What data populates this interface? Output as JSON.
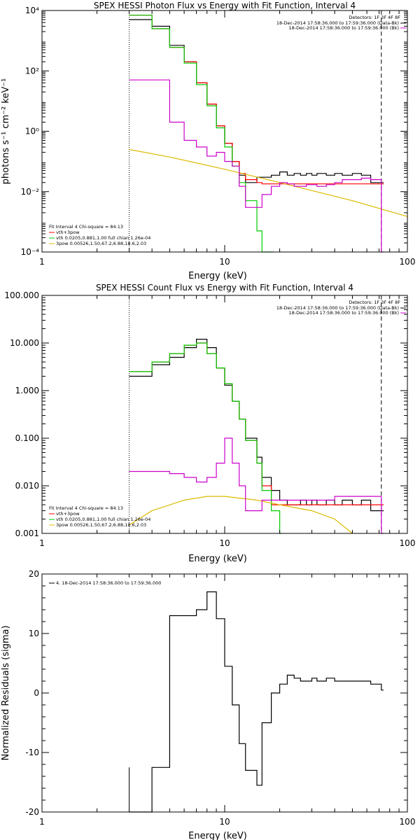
{
  "chart_data": [
    {
      "type": "line",
      "title": "SPEX HESSI Photon Flux vs Energy with Fit Function, Interval 4",
      "xlabel": "Energy (keV)",
      "ylabel": "photons s⁻¹ cm⁻² keV⁻¹",
      "xscale": "log",
      "yscale": "log",
      "xlim": [
        1,
        100
      ],
      "ylim": [
        0.0001,
        10000
      ],
      "x_ticks": [
        "1",
        "10",
        "100"
      ],
      "y_ticks": [
        "10⁻⁴",
        "10⁻²",
        "10⁰",
        "10²",
        "10⁴"
      ],
      "legend_top": {
        "header": "Detectors: 1F 3F 4F 8F",
        "entries": [
          {
            "label": "18-Dec-2014 17:58:36.000 to 17:59:36.000 (Data-Bk)",
            "color": "#000000"
          },
          {
            "label": "18-Dec-2014 17:58:36.000 to 17:59:36.000 (Bk)",
            "color": "#cc00cc"
          }
        ]
      },
      "legend_bottom": {
        "header": "Fit Interval  4    Chi-square = 84.13",
        "entries": [
          {
            "label": "vth+3pow",
            "color": "#ff0000"
          },
          {
            "label": "vth 0.0205,0.881,1.00  full chian 1.26e-04",
            "color": "#00cc00"
          },
          {
            "label": "3pow 0.00526,1.50,67.2,6.88,18.6,2.03",
            "color": "#ddbb00"
          }
        ]
      },
      "markers": {
        "dotted_x": 3,
        "dashed_x": 72
      },
      "series": [
        {
          "name": "18-Dec-2014 17:58:36.000 to 17:59:36.000 (Data-Bk)",
          "color": "#000000",
          "x": [
            3,
            4,
            5,
            6,
            7,
            8,
            9,
            10,
            11,
            12,
            13,
            15,
            16,
            18,
            20,
            22,
            24,
            26,
            28,
            30,
            32,
            36,
            40,
            44,
            50,
            56,
            63,
            72
          ],
          "y": [
            5000,
            3000,
            700,
            200,
            40,
            8,
            1.5,
            0.4,
            0.1,
            0.035,
            0.02,
            0.03,
            0.03,
            0.035,
            0.045,
            0.035,
            0.04,
            0.035,
            0.04,
            0.035,
            0.04,
            0.035,
            0.04,
            0.035,
            0.04,
            0.035,
            0.02,
            0.02
          ]
        },
        {
          "name": "vth+3pow",
          "color": "#ff0000",
          "x": [
            3,
            4,
            5,
            6,
            7,
            8,
            9,
            10,
            11,
            12,
            13,
            15,
            16,
            18,
            20,
            22,
            24,
            26,
            28,
            30,
            32,
            36,
            40,
            44,
            50,
            56,
            63,
            72
          ],
          "y": [
            7000,
            2500,
            600,
            200,
            40,
            8,
            1.5,
            0.4,
            0.1,
            0.04,
            0.025,
            0.02,
            0.018,
            0.018,
            0.018,
            0.018,
            0.018,
            0.018,
            0.018,
            0.018,
            0.018,
            0.018,
            0.018,
            0.018,
            0.018,
            0.018,
            0.018,
            0.018
          ]
        },
        {
          "name": "vth 0.0205,0.881,1.00",
          "color": "#00cc00",
          "x": [
            3,
            4,
            5,
            6,
            7,
            8,
            9,
            10,
            11,
            12,
            13,
            15,
            16,
            18
          ],
          "y": [
            7000,
            2500,
            600,
            180,
            35,
            7,
            1.3,
            0.3,
            0.07,
            0.02,
            0.005,
            0.0005,
            0.0001,
            0.0001
          ]
        },
        {
          "name": "3pow 0.00526,1.50,67.2,6.88,18.6,2.03",
          "color": "#ddbb00",
          "x": [
            3,
            5,
            10,
            20,
            50,
            100
          ],
          "y": [
            0.25,
            0.14,
            0.055,
            0.02,
            0.005,
            0.0015
          ]
        },
        {
          "name": "18-Dec-2014 17:58:36.000 to 17:59:36.000 (Bk)",
          "color": "#cc00cc",
          "x": [
            3,
            4,
            5,
            6,
            7,
            8,
            9,
            10,
            11,
            12,
            13,
            15,
            16,
            18,
            20,
            22,
            24,
            26,
            28,
            30,
            32,
            36,
            40,
            44,
            50,
            56,
            63,
            72
          ],
          "y": [
            50,
            50,
            2,
            0.5,
            0.3,
            0.15,
            0.2,
            0.1,
            0.07,
            0.015,
            0.003,
            0.003,
            0.008,
            0.015,
            0.02,
            0.018,
            0.015,
            0.015,
            0.017,
            0.017,
            0.015,
            0.017,
            0.02,
            0.025,
            0.025,
            0.028,
            0.025,
            0.0001
          ]
        }
      ]
    },
    {
      "type": "line",
      "title": "SPEX HESSI Count Flux vs Energy with Fit Function, Interval 4",
      "xlabel": "Energy (keV)",
      "ylabel": "",
      "xscale": "log",
      "yscale": "log",
      "xlim": [
        1,
        100
      ],
      "ylim": [
        0.001,
        100
      ],
      "x_ticks": [
        "1",
        "10",
        "100"
      ],
      "y_ticks": [
        "100.000",
        "10.000",
        "1.000",
        "0.100",
        "0.010",
        "0.001"
      ],
      "legend_top": {
        "header": "Detectors: 1F 3F 4F 8F",
        "entries": [
          {
            "label": "18-Dec-2014 17:58:36.000 to 17:59:36.000 (Data-Bk)",
            "color": "#000000"
          },
          {
            "label": "18-Dec-2014 17:58:36.000 to 17:59:36.000 (Bk)",
            "color": "#cc00cc"
          }
        ]
      },
      "legend_bottom": {
        "header": "Fit Interval  4    Chi-square = 84.13",
        "entries": [
          {
            "label": "vth+3pow",
            "color": "#ff0000"
          },
          {
            "label": "vth 0.0205,0.881,1.00  full chian 1.26e-04",
            "color": "#00cc00"
          },
          {
            "label": "3pow 0.00526,1.50,67.2,6.88,18.6,2.03",
            "color": "#ddbb00"
          }
        ]
      },
      "markers": {
        "dotted_x": 3,
        "dashed_x": 72
      },
      "series": [
        {
          "name": "18-Dec-2014 17:58:36.000 to 17:59:36.000 (Data-Bk)",
          "color": "#000000",
          "x": [
            3,
            4,
            5,
            6,
            7,
            8,
            9,
            10,
            11,
            12,
            13,
            15,
            16,
            18,
            20,
            22,
            24,
            26,
            28,
            30,
            32,
            36,
            40,
            44,
            50,
            56,
            63,
            72
          ],
          "y": [
            2,
            3.5,
            5,
            8,
            12,
            8,
            3,
            1.3,
            0.6,
            0.25,
            0.1,
            0.04,
            0.015,
            0.008,
            0.005,
            0.004,
            0.004,
            0.005,
            0.004,
            0.005,
            0.004,
            0.005,
            0.004,
            0.005,
            0.004,
            0.005,
            0.003,
            0.003
          ]
        },
        {
          "name": "vth+3pow",
          "color": "#ff0000",
          "x": [
            3,
            4,
            5,
            6,
            7,
            8,
            9,
            10,
            11,
            12,
            13,
            15,
            16,
            18,
            20,
            22,
            24,
            26,
            28,
            30,
            32,
            36,
            40,
            44,
            50,
            56,
            63,
            72
          ],
          "y": [
            2.5,
            4,
            6,
            9,
            10,
            6,
            3,
            1.4,
            0.6,
            0.25,
            0.09,
            0.03,
            0.01,
            0.004,
            0.004,
            0.004,
            0.004,
            0.004,
            0.004,
            0.004,
            0.004,
            0.004,
            0.004,
            0.004,
            0.004,
            0.004,
            0.004,
            0.004
          ]
        },
        {
          "name": "vth 0.0205,0.881,1.00",
          "color": "#00cc00",
          "x": [
            3,
            4,
            5,
            6,
            7,
            8,
            9,
            10,
            11,
            12,
            13,
            15,
            16,
            18,
            20
          ],
          "y": [
            2.5,
            4,
            6,
            9,
            10,
            6,
            3,
            1.4,
            0.6,
            0.25,
            0.09,
            0.03,
            0.008,
            0.003,
            0.001
          ]
        },
        {
          "name": "3pow 0.00526,1.50,67.2,6.88,18.6,2.03",
          "color": "#ddbb00",
          "x": [
            3,
            4,
            6,
            8,
            10,
            15,
            20,
            30,
            40,
            50
          ],
          "y": [
            0.0015,
            0.003,
            0.005,
            0.006,
            0.006,
            0.005,
            0.004,
            0.003,
            0.002,
            0.001
          ]
        },
        {
          "name": "18-Dec-2014 17:58:36.000 to 17:59:36.000 (Bk)",
          "color": "#cc00cc",
          "x": [
            3,
            4,
            5,
            6,
            7,
            8,
            9,
            10,
            11,
            12,
            13,
            15,
            16,
            18,
            20,
            22,
            24,
            26,
            28,
            30,
            32,
            36,
            40,
            44,
            50,
            56,
            63,
            72
          ],
          "y": [
            0.02,
            0.02,
            0.018,
            0.015,
            0.012,
            0.015,
            0.03,
            0.1,
            0.03,
            0.01,
            0.003,
            0.003,
            0.005,
            0.005,
            0.005,
            0.005,
            0.005,
            0.005,
            0.005,
            0.005,
            0.005,
            0.005,
            0.006,
            0.006,
            0.006,
            0.006,
            0.006,
            0.001
          ]
        }
      ]
    },
    {
      "type": "line",
      "title": "",
      "xlabel": "Energy (keV)",
      "ylabel": "Normalized Residuals (sigma)",
      "xscale": "log",
      "yscale": "linear",
      "xlim": [
        1,
        100
      ],
      "ylim": [
        -20,
        20
      ],
      "x_ticks": [
        "1",
        "10",
        "100"
      ],
      "y_ticks": [
        "20",
        "10",
        "0",
        "-10",
        "-20"
      ],
      "legend": {
        "entries": [
          {
            "label": "4. 18-Dec-2014 17:58:36.000 to 17:59:36.000",
            "color": "#000000"
          }
        ]
      },
      "series": [
        {
          "name": "4. 18-Dec-2014 17:58:36.000 to 17:59:36.000",
          "color": "#000000",
          "x": [
            3,
            4,
            5,
            6,
            7,
            8,
            9,
            10,
            11,
            12,
            13,
            15,
            16,
            18,
            20,
            22,
            24,
            26,
            28,
            30,
            32,
            36,
            40,
            44,
            50,
            56,
            63,
            72
          ],
          "y": [
            -20,
            -12.5,
            13,
            13,
            14,
            17,
            12.5,
            4.5,
            -2,
            -8.5,
            -13,
            -15.5,
            -5,
            0,
            1.5,
            3,
            2.5,
            2,
            2,
            2.5,
            2,
            2.5,
            2,
            2,
            2,
            2,
            1.5,
            0.5
          ]
        }
      ]
    }
  ]
}
